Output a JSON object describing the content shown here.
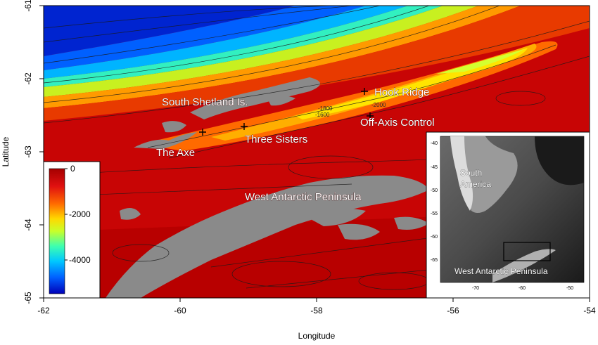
{
  "axes": {
    "xlabel": "Longitude",
    "ylabel": "Latitude",
    "x_ticks": [
      "-62",
      "-60",
      "-58",
      "-56",
      "-54"
    ],
    "y_ticks": [
      "-61",
      "-62",
      "-63",
      "-64",
      "-65"
    ],
    "xlim": [
      -62,
      -54
    ],
    "ylim": [
      -65,
      -61
    ]
  },
  "map_labels": {
    "south_shetland": "South Shetland Is.",
    "hook_ridge": "Hook Ridge",
    "off_axis": "Off-Axis Control",
    "three_sisters": "Three Sisters",
    "the_axe": "The Axe",
    "west_antarctic": "West Antarctic Peninsula"
  },
  "contour_labels": [
    "-1600",
    "-1800",
    "-2000"
  ],
  "sites": [
    {
      "name": "Hook Ridge",
      "lon": -57.2,
      "lat": -62.2
    },
    {
      "name": "Off-Axis Control",
      "lon": -57.2,
      "lat": -62.55
    },
    {
      "name": "Three Sisters",
      "lon": -59.1,
      "lat": -62.8
    },
    {
      "name": "The Axe",
      "lon": -60.0,
      "lat": -62.9
    }
  ],
  "legend": {
    "ticks": [
      "0",
      "-2000",
      "-4000"
    ],
    "range": [
      -5000,
      0
    ],
    "colors": [
      "#a50000",
      "#e01010",
      "#ff6a00",
      "#ffd800",
      "#c8ff2a",
      "#3dffb0",
      "#00c8ff",
      "#0060ff",
      "#0000b8"
    ]
  },
  "inset": {
    "x_ticks": [
      "-70",
      "-60",
      "-50"
    ],
    "y_ticks": [
      "-40",
      "-45",
      "-50",
      "-55",
      "-60",
      "-65"
    ],
    "label_south_america_1": "South",
    "label_south_america_2": "America",
    "label_wap": "West Antarctic Peninsula"
  },
  "colors": {
    "land": "#8a8a8a",
    "shelf": "#c40000",
    "deep": "#0018c8"
  }
}
